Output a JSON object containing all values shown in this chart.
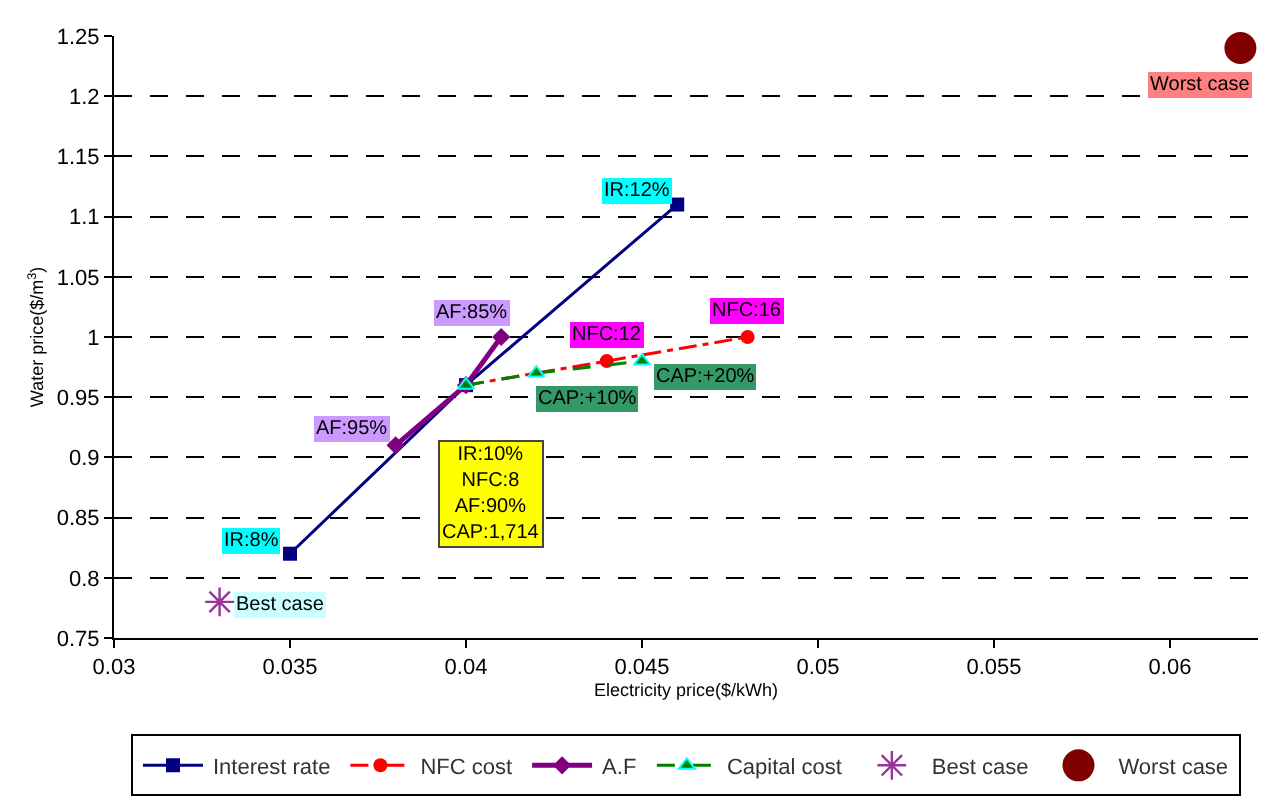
{
  "chart_data": {
    "type": "line",
    "xlabel": "Electricity price($/kWh)",
    "ylabel": "Water price($/m$^{3}$)",
    "xlim": [
      0.03,
      0.0625
    ],
    "xticks": [
      0.03,
      0.035,
      0.04,
      0.045,
      0.05,
      0.055,
      0.06
    ],
    "ylim": [
      0.75,
      1.25
    ],
    "yticks": [
      0.75,
      0.8,
      0.85,
      0.9,
      0.95,
      1,
      1.05,
      1.1,
      1.15,
      1.2,
      1.25
    ],
    "grid": "y",
    "legend": "bottom",
    "series": [
      {
        "name": "Interest rate",
        "color": "#000080",
        "marker": "square",
        "line_style": "solid",
        "x": [
          0.035,
          0.04,
          0.046
        ],
        "values": [
          0.82,
          0.96,
          1.11
        ]
      },
      {
        "name": "NFC cost",
        "color": "#ff0000",
        "marker": "circle",
        "line_style": "dashdot",
        "x": [
          0.04,
          0.044,
          0.048
        ],
        "values": [
          0.96,
          0.98,
          1.0
        ]
      },
      {
        "name": "A.F",
        "color": "#800080",
        "marker": "diamond",
        "line_style": "solid",
        "x": [
          0.038,
          0.04,
          0.041
        ],
        "values": [
          0.91,
          0.96,
          1.0
        ]
      },
      {
        "name": "Capital cost",
        "color": "#008000",
        "marker": "triangle",
        "line_style": "dashed",
        "x": [
          0.04,
          0.042,
          0.045
        ],
        "values": [
          0.96,
          0.97,
          0.98
        ]
      },
      {
        "name": "Best case",
        "type": "scatter",
        "color": "#993399",
        "marker": "cross",
        "x": [
          0.033
        ],
        "values": [
          0.78
        ]
      },
      {
        "name": "Worst case",
        "type": "scatter",
        "color": "#800000",
        "marker": "circle",
        "x": [
          0.062
        ],
        "values": [
          1.24
        ]
      }
    ],
    "annotations": [
      {
        "text": "IR:12%",
        "x": 0.046,
        "y": 1.11
      },
      {
        "text": "IR:8%",
        "x": 0.035,
        "y": 0.82
      },
      {
        "text": "AF:85%",
        "x": 0.041,
        "y": 1.0
      },
      {
        "text": "AF:95%",
        "x": 0.038,
        "y": 0.91
      },
      {
        "text": "IR:10%\nNFC:8\nAF:90%\nCAP:1,714",
        "x": 0.04,
        "y": 0.96
      },
      {
        "text": "NFC:12",
        "x": 0.044,
        "y": 0.98
      },
      {
        "text": "NFC:16",
        "x": 0.048,
        "y": 1.0
      },
      {
        "text": "CAP:+10%",
        "x": 0.042,
        "y": 0.97
      },
      {
        "text": "CAP:+20%",
        "x": 0.045,
        "y": 0.98
      },
      {
        "text": "Best case",
        "x": 0.033,
        "y": 0.78
      },
      {
        "text": "Worst case",
        "x": 0.062,
        "y": 1.24
      }
    ]
  }
}
